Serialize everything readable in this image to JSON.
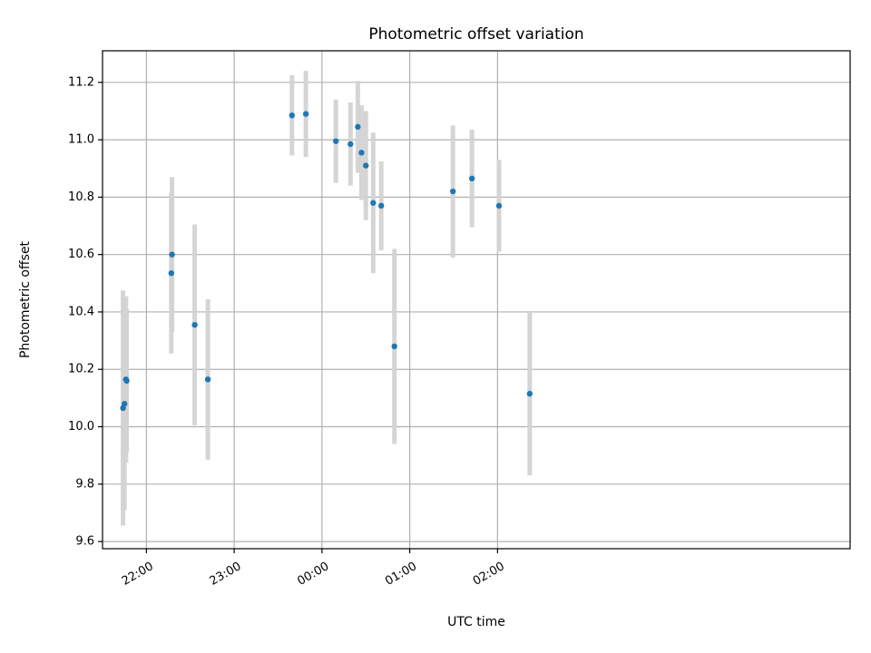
{
  "chart_data": {
    "type": "scatter",
    "title": "Photometric offset variation",
    "xlabel": "UTC time",
    "ylabel": "Photometric offset",
    "xlim_minutes": [
      -150,
      361
    ],
    "ylim": [
      9.575,
      11.31
    ],
    "x_ticks": [
      {
        "minutes": -120,
        "label": "22:00"
      },
      {
        "minutes": -60,
        "label": "23:00"
      },
      {
        "minutes": 0,
        "label": "00:00"
      },
      {
        "minutes": 60,
        "label": "01:00"
      },
      {
        "minutes": 120,
        "label": "02:00"
      }
    ],
    "y_ticks": [
      9.6,
      9.8,
      10.0,
      10.2,
      10.4,
      10.6,
      10.8,
      11.0,
      11.2
    ],
    "y_tick_labels": [
      "9.6",
      "9.8",
      "10.0",
      "10.2",
      "10.4",
      "10.6",
      "10.8",
      "11.0",
      "11.2"
    ],
    "grid": true,
    "marker_color": "#1f77b4",
    "errorbar_color": "#d3d3d3",
    "points": [
      {
        "t": -136.0,
        "y": 10.065,
        "err": 0.41
      },
      {
        "t": -135.0,
        "y": 10.08,
        "err": 0.37
      },
      {
        "t": -134.0,
        "y": 10.165,
        "err": 0.29
      },
      {
        "t": -133.5,
        "y": 10.16,
        "err": 0.25
      },
      {
        "t": -103.0,
        "y": 10.535,
        "err": 0.28
      },
      {
        "t": -102.5,
        "y": 10.6,
        "err": 0.27
      },
      {
        "t": -87.0,
        "y": 10.355,
        "err": 0.35
      },
      {
        "t": -78.0,
        "y": 10.165,
        "err": 0.28
      },
      {
        "t": -20.5,
        "y": 11.085,
        "err": 0.14
      },
      {
        "t": -11.0,
        "y": 11.09,
        "err": 0.15
      },
      {
        "t": 9.5,
        "y": 10.995,
        "err": 0.145
      },
      {
        "t": 19.5,
        "y": 10.985,
        "err": 0.145
      },
      {
        "t": 24.5,
        "y": 11.045,
        "err": 0.16
      },
      {
        "t": 27.0,
        "y": 10.955,
        "err": 0.165
      },
      {
        "t": 30.0,
        "y": 10.91,
        "err": 0.19
      },
      {
        "t": 35.0,
        "y": 10.78,
        "err": 0.245
      },
      {
        "t": 40.5,
        "y": 10.77,
        "err": 0.155
      },
      {
        "t": 49.5,
        "y": 10.28,
        "err": 0.34
      },
      {
        "t": 89.5,
        "y": 10.82,
        "err": 0.23
      },
      {
        "t": 102.5,
        "y": 10.865,
        "err": 0.17
      },
      {
        "t": 121.0,
        "y": 10.77,
        "err": 0.16
      },
      {
        "t": 142.0,
        "y": 10.115,
        "err": 0.285
      }
    ]
  }
}
